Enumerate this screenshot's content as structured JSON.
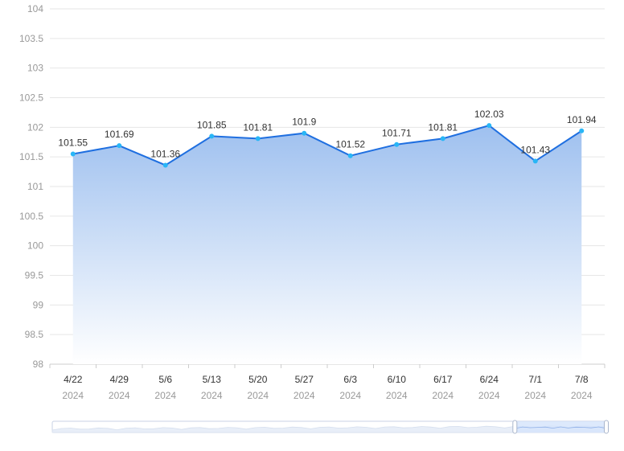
{
  "chart_data": {
    "type": "area",
    "title": "",
    "xlabel": "",
    "ylabel": "",
    "categories": [
      "4/22",
      "4/29",
      "5/6",
      "5/13",
      "5/20",
      "5/27",
      "6/3",
      "6/10",
      "6/17",
      "6/24",
      "7/1",
      "7/8"
    ],
    "category_years": [
      "2024",
      "2024",
      "2024",
      "2024",
      "2024",
      "2024",
      "2024",
      "2024",
      "2024",
      "2024",
      "2024",
      "2024"
    ],
    "values": [
      101.55,
      101.69,
      101.36,
      101.85,
      101.81,
      101.9,
      101.52,
      101.71,
      101.81,
      102.03,
      101.43,
      101.94
    ],
    "data_labels": [
      "101.55",
      "101.69",
      "101.36",
      "101.85",
      "101.81",
      "101.9",
      "101.52",
      "101.71",
      "101.81",
      "102.03",
      "101.43",
      "101.94"
    ],
    "ylim": [
      98,
      104
    ],
    "yticks": [
      "98",
      "98.5",
      "99",
      "99.5",
      "100",
      "100.5",
      "101",
      "101.5",
      "102",
      "102.5",
      "103",
      "103.5",
      "104"
    ],
    "grid": true,
    "legend": "none",
    "data_zoom": {
      "visible": true,
      "selected_range": [
        0.835,
        1.0
      ]
    },
    "colors": {
      "line": "#1f6fe0",
      "point": "#29b6f6",
      "area_top": "#9ec0ef",
      "area_bottom": "#ffffff",
      "grid": "#e6e6e6",
      "zoom_fill": "#d4e3fb",
      "zoom_border": "#c8d2e6"
    }
  }
}
